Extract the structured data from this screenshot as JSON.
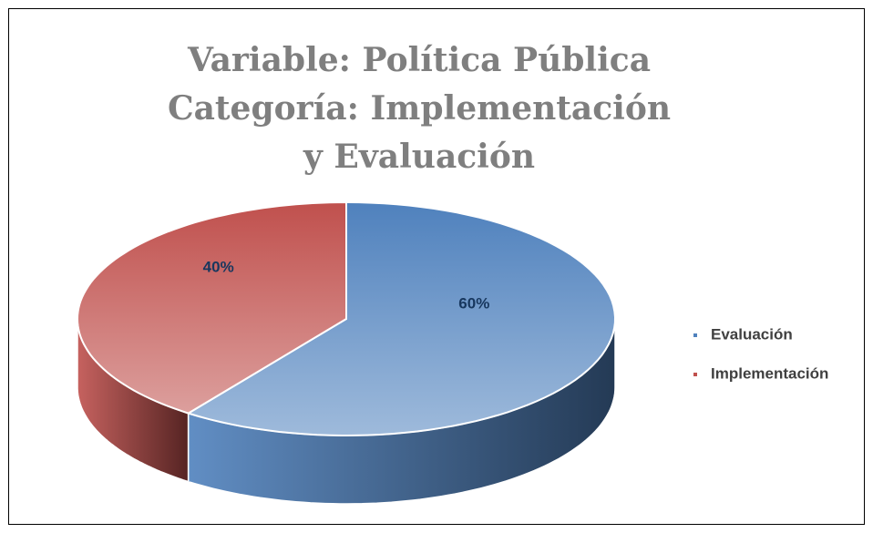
{
  "chart_data": {
    "type": "pie",
    "title": "Variable: Política Pública",
    "subtitle": "Categoría: Implementación y Evaluación",
    "categories": [
      "Evaluación",
      "Implementación"
    ],
    "values": [
      60,
      40
    ],
    "value_labels": [
      "60%",
      "40%"
    ],
    "colors": [
      "#4f81bd",
      "#c0504d"
    ],
    "legend": "right"
  }
}
